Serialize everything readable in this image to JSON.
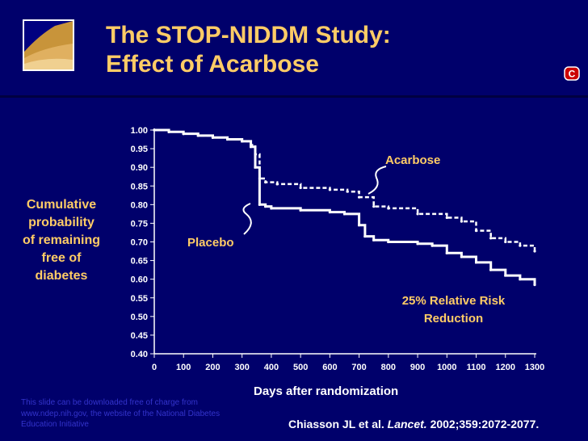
{
  "slide": {
    "title_line1": "The STOP-NIDDM Study:",
    "title_line2": "Effect of Acarbose",
    "y_side_label": "Cumulative\nprobability\nof remaining\nfree of\ndiabetes",
    "x_label": "Days after randomization",
    "annotation_acarbose": "Acarbose",
    "annotation_placebo": "Placebo",
    "annotation_risk": "25% Relative Risk\nReduction",
    "footer_note": "This slide can be downloaded free of charge from www.ndep.nih.gov, the website of the National Diabetes Education Initiative",
    "citation_authors": "Chiasson JL et al.",
    "citation_journal": "Lancet.",
    "citation_details": "2002;359:2072-2077.",
    "badge_letter": "C",
    "colors": {
      "background": "#00006b",
      "title": "#ffcc66",
      "text": "#ffffff",
      "series": "#ffffff"
    }
  },
  "chart_data": {
    "type": "line",
    "x_ticks": [
      0,
      100,
      200,
      300,
      400,
      500,
      600,
      700,
      800,
      900,
      1000,
      1100,
      1200,
      1300
    ],
    "y_ticks": [
      "0.40",
      "0.45",
      "0.50",
      "0.55",
      "0.60",
      "0.65",
      "0.70",
      "0.75",
      "0.80",
      "0.85",
      "0.90",
      "0.95",
      "1.00"
    ],
    "xlim": [
      0,
      1300
    ],
    "ylim": [
      0.4,
      1.0
    ],
    "series": [
      {
        "name": "Acarbose",
        "x": [
          0,
          50,
          100,
          150,
          200,
          250,
          300,
          330,
          345,
          360,
          380,
          420,
          500,
          600,
          660,
          700,
          750,
          800,
          900,
          1000,
          1050,
          1100,
          1150,
          1200,
          1250,
          1300
        ],
        "y": [
          1.0,
          0.995,
          0.99,
          0.985,
          0.98,
          0.975,
          0.97,
          0.96,
          0.935,
          0.87,
          0.86,
          0.855,
          0.845,
          0.84,
          0.835,
          0.82,
          0.795,
          0.79,
          0.775,
          0.765,
          0.755,
          0.73,
          0.71,
          0.7,
          0.69,
          0.675
        ]
      },
      {
        "name": "Placebo",
        "x": [
          0,
          50,
          100,
          150,
          200,
          250,
          300,
          330,
          345,
          360,
          380,
          400,
          500,
          600,
          650,
          700,
          720,
          750,
          800,
          900,
          950,
          1000,
          1050,
          1100,
          1150,
          1200,
          1250,
          1300
        ],
        "y": [
          1.0,
          0.995,
          0.99,
          0.985,
          0.98,
          0.975,
          0.97,
          0.955,
          0.9,
          0.8,
          0.795,
          0.79,
          0.785,
          0.78,
          0.775,
          0.745,
          0.715,
          0.705,
          0.7,
          0.695,
          0.69,
          0.67,
          0.66,
          0.645,
          0.625,
          0.61,
          0.6,
          0.585
        ]
      }
    ]
  }
}
